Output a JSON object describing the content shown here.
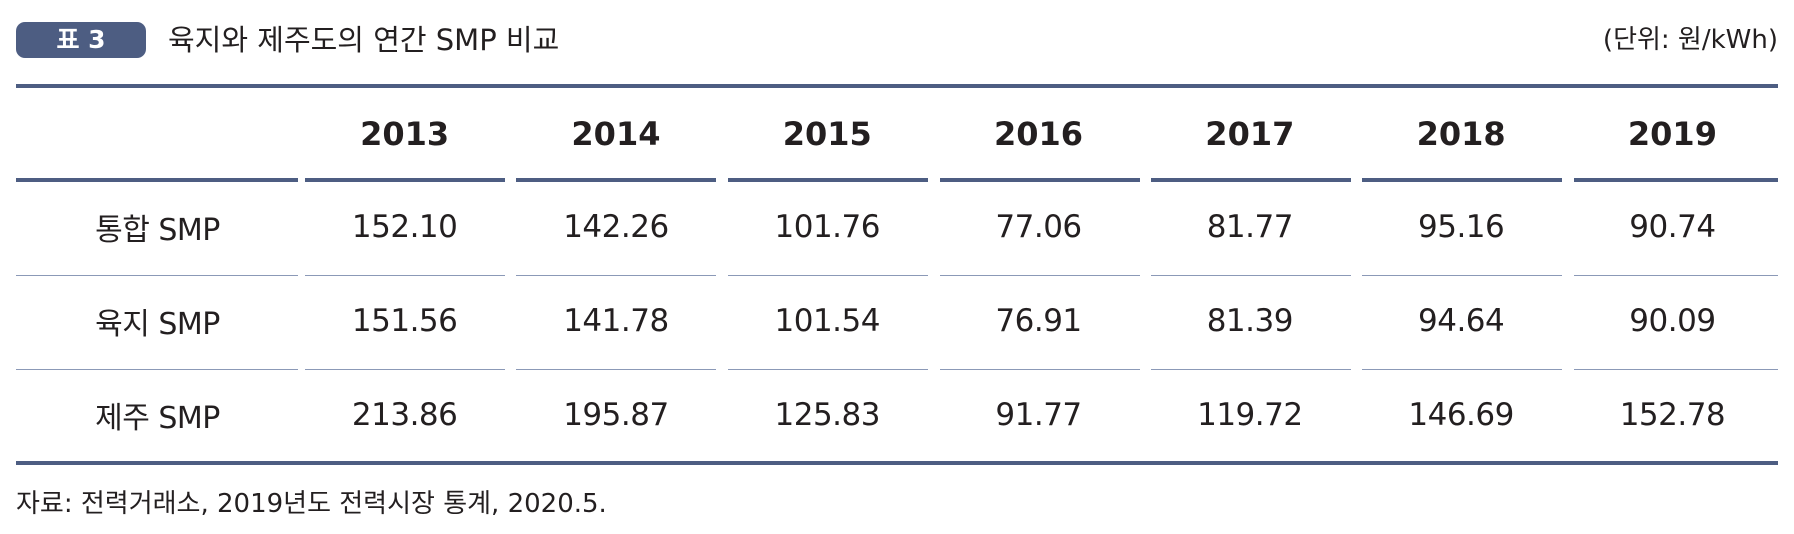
{
  "header": {
    "badge": "표 3",
    "title": "육지와 제주도의 연간 SMP 비교",
    "unit": "(단위: 원/kWh)"
  },
  "table": {
    "columns": [
      "",
      "2013",
      "2014",
      "2015",
      "2016",
      "2017",
      "2018",
      "2019"
    ],
    "rows": [
      {
        "label": "통합 SMP",
        "values": [
          "152.10",
          "142.26",
          "101.76",
          "77.06",
          "81.77",
          "95.16",
          "90.74"
        ]
      },
      {
        "label": "육지 SMP",
        "values": [
          "151.56",
          "141.78",
          "101.54",
          "76.91",
          "81.39",
          "94.64",
          "90.09"
        ]
      },
      {
        "label": "제주 SMP",
        "values": [
          "213.86",
          "195.87",
          "125.83",
          "91.77",
          "119.72",
          "146.69",
          "152.78"
        ]
      }
    ]
  },
  "source": "자료: 전력거래소, 2019년도 전력시장 통계, 2020.5.",
  "colors": {
    "accent": "#4d5d82",
    "row_rule": "#8b99b7",
    "text": "#231f20"
  }
}
